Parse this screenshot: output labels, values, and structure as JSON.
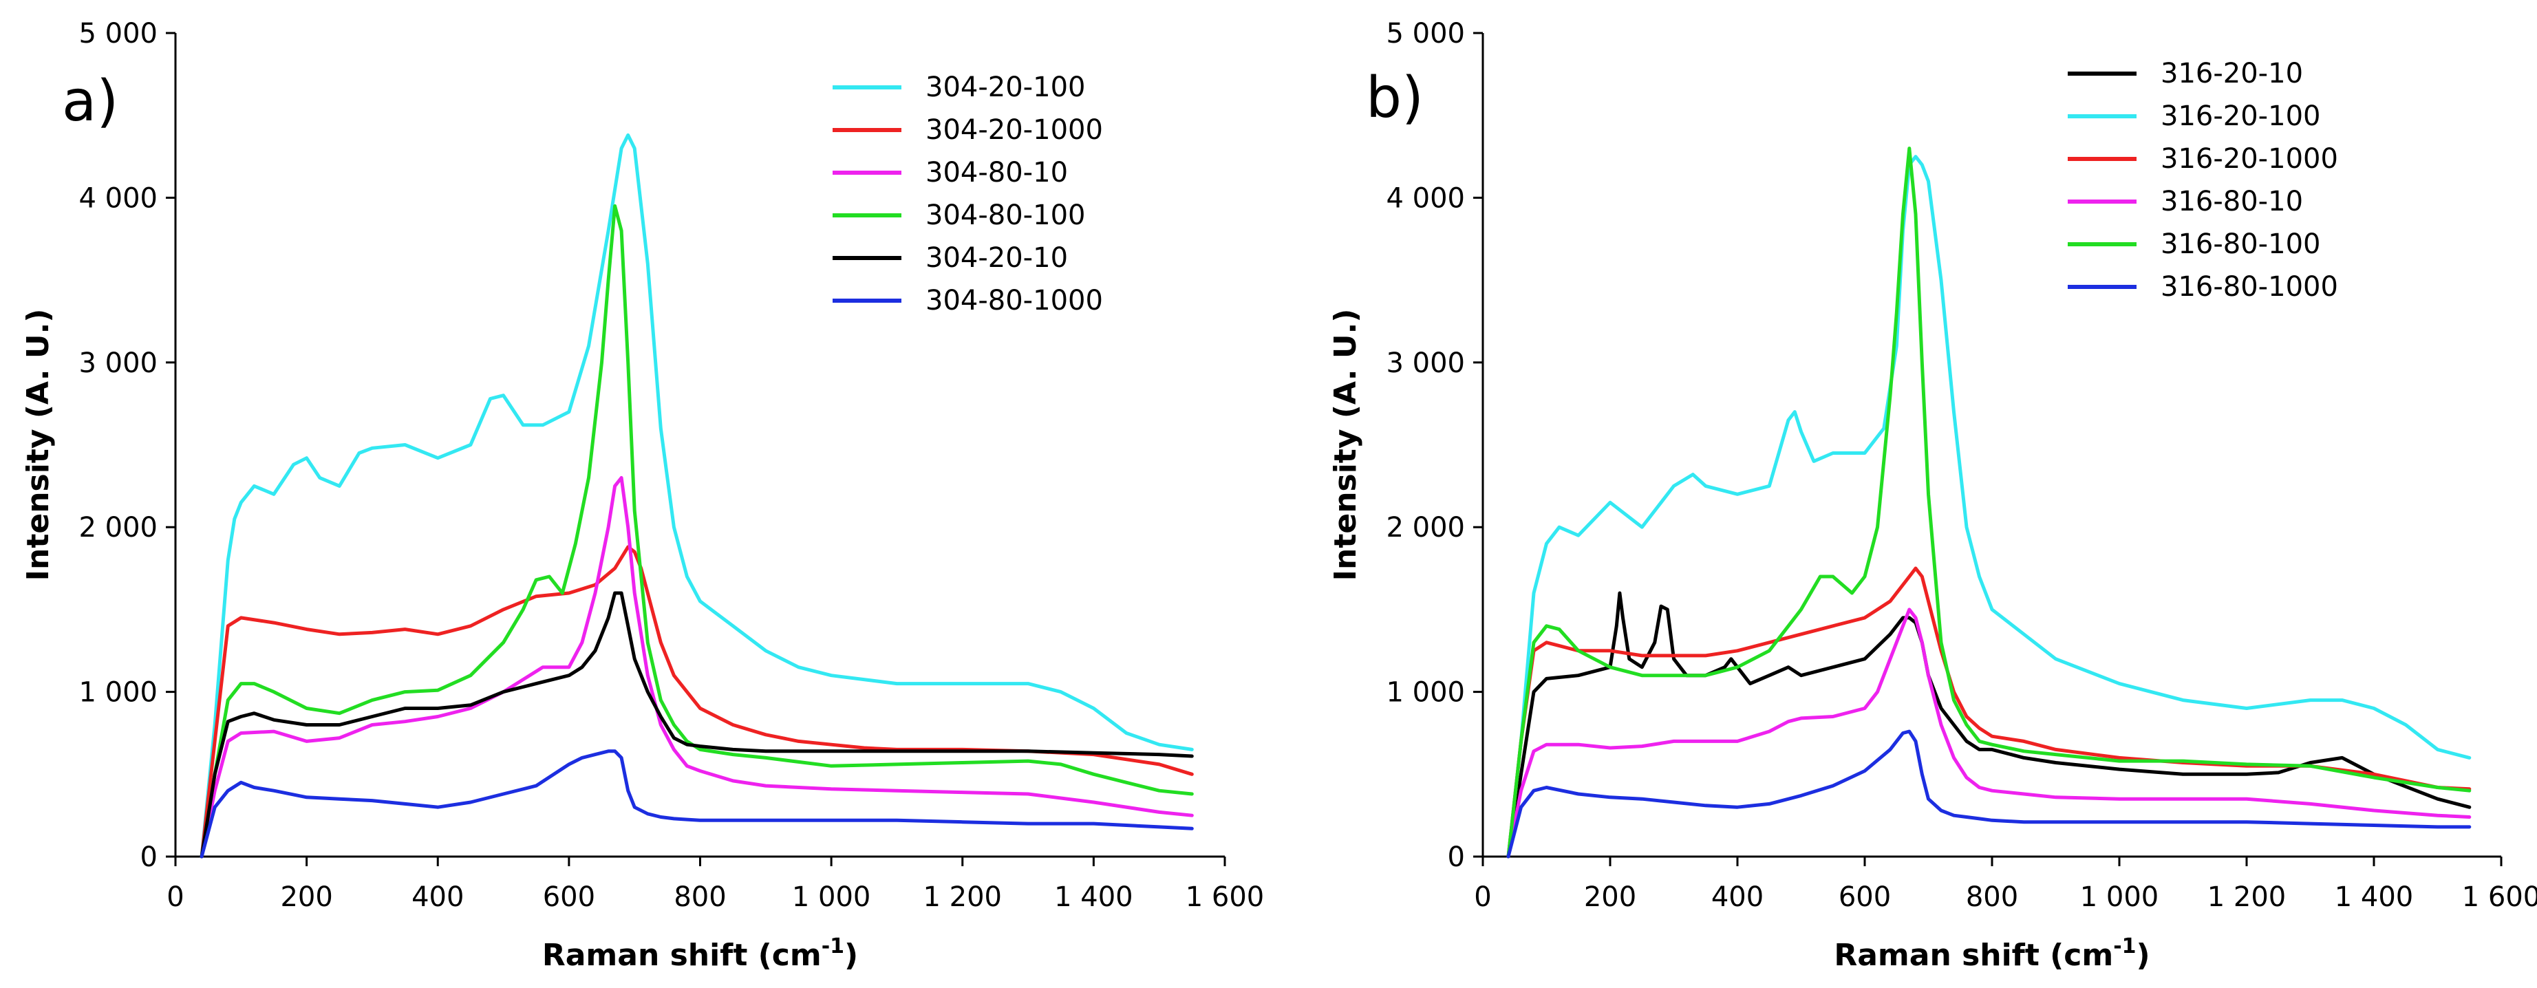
{
  "chart_data": [
    {
      "type": "line",
      "panel_label": "a)",
      "xlabel": "Raman shift (cm-1)",
      "xlabel_main": "Raman shift (cm",
      "xlabel_sup": "-1",
      "xlabel_tail": ")",
      "ylabel": "Intensity (A. U.)",
      "xlim": [
        0,
        1600
      ],
      "ylim": [
        0,
        5000
      ],
      "xticks": [
        0,
        200,
        400,
        600,
        800,
        1000,
        1200,
        1400,
        1600
      ],
      "xtick_labels": [
        "0",
        "200",
        "400",
        "600",
        "800",
        "1 000",
        "1 200",
        "1 400",
        "1 600"
      ],
      "yticks": [
        0,
        1000,
        2000,
        3000,
        4000,
        5000
      ],
      "ytick_labels": [
        "0",
        "1 000",
        "2 000",
        "3 000",
        "4 000",
        "5 000"
      ],
      "grid": false,
      "legend_position": "top-right",
      "series": [
        {
          "name": "304-20-100",
          "color": "#33e8f2",
          "x": [
            40,
            60,
            80,
            90,
            100,
            120,
            150,
            180,
            200,
            220,
            250,
            280,
            300,
            350,
            400,
            450,
            480,
            500,
            530,
            560,
            600,
            630,
            660,
            680,
            690,
            700,
            720,
            740,
            760,
            780,
            800,
            850,
            900,
            950,
            1000,
            1100,
            1200,
            1300,
            1350,
            1400,
            1450,
            1500,
            1550
          ],
          "y": [
            0,
            800,
            1800,
            2050,
            2150,
            2250,
            2200,
            2380,
            2420,
            2300,
            2250,
            2450,
            2480,
            2500,
            2420,
            2500,
            2780,
            2800,
            2620,
            2620,
            2700,
            3100,
            3800,
            4300,
            4380,
            4300,
            3600,
            2600,
            2000,
            1700,
            1550,
            1400,
            1250,
            1150,
            1100,
            1050,
            1050,
            1050,
            1000,
            900,
            750,
            680,
            650
          ]
        },
        {
          "name": "304-20-1000",
          "color": "#ee2222",
          "x": [
            40,
            60,
            80,
            100,
            150,
            200,
            250,
            300,
            350,
            400,
            450,
            500,
            550,
            600,
            640,
            670,
            690,
            700,
            710,
            720,
            740,
            760,
            780,
            800,
            850,
            900,
            950,
            1000,
            1050,
            1100,
            1200,
            1300,
            1400,
            1500,
            1550
          ],
          "y": [
            0,
            700,
            1400,
            1450,
            1420,
            1380,
            1350,
            1360,
            1380,
            1350,
            1400,
            1500,
            1580,
            1600,
            1650,
            1750,
            1880,
            1850,
            1750,
            1600,
            1300,
            1100,
            1000,
            900,
            800,
            740,
            700,
            680,
            660,
            650,
            650,
            640,
            620,
            560,
            500
          ]
        },
        {
          "name": "304-80-10",
          "color": "#ee22ee",
          "x": [
            40,
            60,
            80,
            100,
            150,
            200,
            250,
            300,
            350,
            400,
            450,
            500,
            540,
            560,
            580,
            600,
            620,
            640,
            660,
            670,
            680,
            690,
            700,
            720,
            740,
            760,
            780,
            800,
            850,
            900,
            1000,
            1100,
            1200,
            1300,
            1400,
            1500,
            1550
          ],
          "y": [
            0,
            400,
            700,
            750,
            760,
            700,
            720,
            800,
            820,
            850,
            900,
            1000,
            1100,
            1150,
            1150,
            1150,
            1300,
            1600,
            2000,
            2250,
            2300,
            2000,
            1600,
            1100,
            800,
            650,
            550,
            520,
            460,
            430,
            410,
            400,
            390,
            380,
            330,
            270,
            250
          ]
        },
        {
          "name": "304-80-100",
          "color": "#22dd22",
          "x": [
            40,
            60,
            80,
            100,
            120,
            150,
            200,
            250,
            300,
            350,
            400,
            450,
            500,
            530,
            550,
            570,
            590,
            610,
            630,
            650,
            660,
            670,
            680,
            690,
            700,
            720,
            740,
            760,
            780,
            800,
            850,
            900,
            1000,
            1100,
            1200,
            1300,
            1350,
            1400,
            1450,
            1500,
            1550
          ],
          "y": [
            0,
            500,
            950,
            1050,
            1050,
            1000,
            900,
            870,
            950,
            1000,
            1010,
            1100,
            1300,
            1500,
            1680,
            1700,
            1600,
            1900,
            2300,
            3000,
            3500,
            3950,
            3800,
            3000,
            2100,
            1300,
            950,
            800,
            700,
            650,
            620,
            600,
            550,
            560,
            570,
            580,
            560,
            500,
            450,
            400,
            380
          ]
        },
        {
          "name": "304-20-10",
          "color": "#000000",
          "x": [
            40,
            60,
            80,
            100,
            120,
            150,
            200,
            250,
            300,
            350,
            400,
            450,
            500,
            550,
            600,
            620,
            640,
            660,
            670,
            680,
            690,
            700,
            720,
            740,
            760,
            780,
            800,
            850,
            900,
            1000,
            1100,
            1200,
            1300,
            1400,
            1500,
            1550
          ],
          "y": [
            0,
            500,
            820,
            850,
            870,
            830,
            800,
            800,
            850,
            900,
            900,
            920,
            1000,
            1050,
            1100,
            1150,
            1250,
            1450,
            1600,
            1600,
            1400,
            1200,
            1000,
            850,
            720,
            680,
            670,
            650,
            640,
            640,
            640,
            640,
            640,
            630,
            620,
            610
          ]
        },
        {
          "name": "304-80-1000",
          "color": "#1c2ee0",
          "x": [
            40,
            60,
            80,
            100,
            120,
            150,
            200,
            250,
            300,
            350,
            400,
            450,
            500,
            550,
            600,
            620,
            640,
            660,
            670,
            680,
            690,
            700,
            720,
            740,
            760,
            780,
            800,
            850,
            900,
            1000,
            1100,
            1200,
            1300,
            1400,
            1500,
            1550
          ],
          "y": [
            0,
            300,
            400,
            450,
            420,
            400,
            360,
            350,
            340,
            320,
            300,
            330,
            380,
            430,
            560,
            600,
            620,
            640,
            640,
            600,
            400,
            300,
            260,
            240,
            230,
            225,
            220,
            220,
            220,
            220,
            220,
            210,
            200,
            200,
            180,
            170
          ]
        }
      ]
    },
    {
      "type": "line",
      "panel_label": "b)",
      "xlabel": "Raman shift (cm-1)",
      "xlabel_main": "Raman shift (cm",
      "xlabel_sup": "-1",
      "xlabel_tail": ")",
      "ylabel": "Intensity (A. U.)",
      "xlim": [
        0,
        1600
      ],
      "ylim": [
        0,
        5000
      ],
      "xticks": [
        0,
        200,
        400,
        600,
        800,
        1000,
        1200,
        1400,
        1600
      ],
      "xtick_labels": [
        "0",
        "200",
        "400",
        "600",
        "800",
        "1 000",
        "1 200",
        "1 400",
        "1 600"
      ],
      "yticks": [
        0,
        1000,
        2000,
        3000,
        4000,
        5000
      ],
      "ytick_labels": [
        "0",
        "1 000",
        "2 000",
        "3 000",
        "4 000",
        "5 000"
      ],
      "grid": false,
      "legend_position": "top-right",
      "series": [
        {
          "name": "316-20-10",
          "color": "#000000",
          "x": [
            40,
            60,
            80,
            100,
            150,
            200,
            210,
            215,
            220,
            230,
            250,
            270,
            280,
            290,
            300,
            320,
            350,
            380,
            390,
            400,
            420,
            450,
            480,
            500,
            550,
            600,
            640,
            660,
            670,
            680,
            690,
            700,
            720,
            740,
            760,
            780,
            800,
            850,
            900,
            1000,
            1100,
            1200,
            1250,
            1300,
            1350,
            1400,
            1500,
            1550
          ],
          "y": [
            0,
            500,
            1000,
            1080,
            1100,
            1150,
            1400,
            1600,
            1450,
            1200,
            1150,
            1300,
            1520,
            1500,
            1200,
            1100,
            1100,
            1150,
            1200,
            1150,
            1050,
            1100,
            1150,
            1100,
            1150,
            1200,
            1350,
            1450,
            1450,
            1420,
            1300,
            1100,
            900,
            800,
            700,
            650,
            650,
            600,
            570,
            530,
            500,
            500,
            510,
            570,
            600,
            500,
            350,
            300
          ]
        },
        {
          "name": "316-20-100",
          "color": "#33e8f2",
          "x": [
            40,
            60,
            80,
            100,
            120,
            150,
            200,
            250,
            300,
            330,
            350,
            400,
            450,
            480,
            490,
            500,
            520,
            550,
            600,
            630,
            650,
            660,
            670,
            680,
            690,
            700,
            720,
            740,
            760,
            780,
            800,
            850,
            900,
            1000,
            1100,
            1200,
            1300,
            1350,
            1400,
            1450,
            1500,
            1550
          ],
          "y": [
            0,
            700,
            1600,
            1900,
            2000,
            1950,
            2150,
            2000,
            2250,
            2320,
            2250,
            2200,
            2250,
            2650,
            2700,
            2580,
            2400,
            2450,
            2450,
            2600,
            3100,
            3800,
            4200,
            4250,
            4200,
            4100,
            3500,
            2700,
            2000,
            1700,
            1500,
            1350,
            1200,
            1050,
            950,
            900,
            950,
            950,
            900,
            800,
            650,
            600
          ]
        },
        {
          "name": "316-20-1000",
          "color": "#ee2222",
          "x": [
            40,
            60,
            80,
            100,
            120,
            150,
            200,
            250,
            300,
            350,
            400,
            450,
            500,
            550,
            600,
            640,
            660,
            670,
            680,
            690,
            700,
            720,
            740,
            760,
            780,
            800,
            850,
            900,
            1000,
            1100,
            1200,
            1300,
            1400,
            1500,
            1550
          ],
          "y": [
            0,
            700,
            1250,
            1300,
            1280,
            1250,
            1250,
            1220,
            1220,
            1220,
            1250,
            1300,
            1350,
            1400,
            1450,
            1550,
            1650,
            1700,
            1750,
            1700,
            1550,
            1250,
            1000,
            850,
            780,
            730,
            700,
            650,
            600,
            570,
            550,
            550,
            500,
            420,
            410
          ]
        },
        {
          "name": "316-80-10",
          "color": "#ee22ee",
          "x": [
            40,
            60,
            80,
            100,
            150,
            200,
            250,
            300,
            350,
            400,
            450,
            480,
            500,
            550,
            600,
            620,
            640,
            660,
            670,
            680,
            690,
            700,
            720,
            740,
            760,
            780,
            800,
            850,
            900,
            1000,
            1100,
            1200,
            1300,
            1400,
            1500,
            1550
          ],
          "y": [
            0,
            400,
            640,
            680,
            680,
            660,
            670,
            700,
            700,
            700,
            760,
            820,
            840,
            850,
            900,
            1000,
            1200,
            1400,
            1500,
            1450,
            1300,
            1100,
            800,
            600,
            480,
            420,
            400,
            380,
            360,
            350,
            350,
            350,
            320,
            280,
            250,
            240
          ]
        },
        {
          "name": "316-80-100",
          "color": "#22dd22",
          "x": [
            40,
            60,
            80,
            100,
            120,
            150,
            200,
            250,
            300,
            350,
            400,
            450,
            500,
            530,
            550,
            580,
            600,
            620,
            640,
            650,
            660,
            670,
            680,
            690,
            700,
            720,
            740,
            760,
            780,
            800,
            850,
            900,
            1000,
            1100,
            1200,
            1300,
            1400,
            1500,
            1550
          ],
          "y": [
            0,
            700,
            1300,
            1400,
            1380,
            1250,
            1150,
            1100,
            1100,
            1100,
            1150,
            1250,
            1500,
            1700,
            1700,
            1600,
            1700,
            2000,
            2800,
            3300,
            3900,
            4300,
            3900,
            3000,
            2200,
            1300,
            950,
            800,
            700,
            680,
            640,
            620,
            580,
            580,
            560,
            550,
            480,
            420,
            400
          ]
        },
        {
          "name": "316-80-1000",
          "color": "#1c2ee0",
          "x": [
            40,
            60,
            80,
            100,
            150,
            200,
            250,
            300,
            350,
            400,
            450,
            500,
            550,
            600,
            640,
            660,
            670,
            680,
            690,
            700,
            720,
            740,
            760,
            780,
            800,
            850,
            900,
            1000,
            1100,
            1200,
            1300,
            1400,
            1500,
            1550
          ],
          "y": [
            0,
            300,
            400,
            420,
            380,
            360,
            350,
            330,
            310,
            300,
            320,
            370,
            430,
            520,
            650,
            750,
            760,
            700,
            500,
            350,
            280,
            250,
            240,
            230,
            220,
            210,
            210,
            210,
            210,
            210,
            200,
            190,
            180,
            180
          ]
        }
      ]
    }
  ]
}
